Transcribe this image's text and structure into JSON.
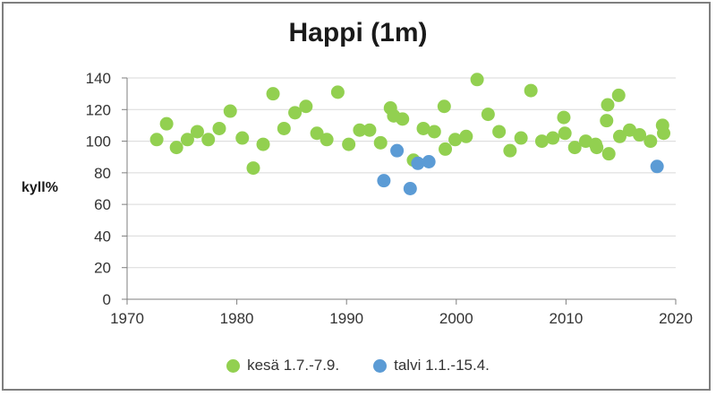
{
  "chart_data": {
    "type": "scatter",
    "title": "Happi (1m)",
    "ylabel": "kyll%",
    "xlabel": "",
    "xlim": [
      1970,
      2020
    ],
    "ylim": [
      0,
      140
    ],
    "xticks": [
      1970,
      1980,
      1990,
      2000,
      2010,
      2020
    ],
    "yticks": [
      0,
      20,
      40,
      60,
      80,
      100,
      120,
      140
    ],
    "grid": "horizontal",
    "legend_position": "bottom",
    "series": [
      {
        "name": "kesä 1.7.-7.9.",
        "color": "#92d050",
        "points": [
          [
            1972.7,
            101
          ],
          [
            1973.6,
            111
          ],
          [
            1974.5,
            96
          ],
          [
            1975.5,
            101
          ],
          [
            1976.4,
            106
          ],
          [
            1977.4,
            101
          ],
          [
            1978.4,
            108
          ],
          [
            1979.4,
            119
          ],
          [
            1980.5,
            102
          ],
          [
            1981.5,
            83
          ],
          [
            1982.4,
            98
          ],
          [
            1983.3,
            130
          ],
          [
            1984.3,
            108
          ],
          [
            1985.3,
            118
          ],
          [
            1986.3,
            122
          ],
          [
            1987.3,
            105
          ],
          [
            1988.2,
            101
          ],
          [
            1989.2,
            131
          ],
          [
            1990.2,
            98
          ],
          [
            1991.2,
            107
          ],
          [
            1992.1,
            107
          ],
          [
            1993.1,
            99
          ],
          [
            1994.0,
            121
          ],
          [
            1994.3,
            116
          ],
          [
            1995.1,
            114
          ],
          [
            1996.1,
            88
          ],
          [
            1997.0,
            108
          ],
          [
            1998.0,
            106
          ],
          [
            1998.9,
            122
          ],
          [
            1999.0,
            95
          ],
          [
            1999.9,
            101
          ],
          [
            2000.9,
            103
          ],
          [
            2001.9,
            139
          ],
          [
            2002.9,
            117
          ],
          [
            2003.9,
            106
          ],
          [
            2004.9,
            94
          ],
          [
            2005.9,
            102
          ],
          [
            2006.8,
            132
          ],
          [
            2007.8,
            100
          ],
          [
            2008.8,
            102
          ],
          [
            2009.8,
            115
          ],
          [
            2009.9,
            105
          ],
          [
            2010.8,
            96
          ],
          [
            2011.8,
            100
          ],
          [
            2012.7,
            98
          ],
          [
            2012.8,
            96
          ],
          [
            2013.7,
            113
          ],
          [
            2013.8,
            123
          ],
          [
            2013.9,
            92
          ],
          [
            2014.8,
            129
          ],
          [
            2014.9,
            103
          ],
          [
            2015.8,
            107
          ],
          [
            2016.7,
            104
          ],
          [
            2017.7,
            100
          ],
          [
            2018.8,
            110
          ],
          [
            2018.9,
            105
          ]
        ]
      },
      {
        "name": "talvi 1.1.-15.4.",
        "color": "#5b9bd5",
        "points": [
          [
            1993.4,
            75
          ],
          [
            1994.6,
            94
          ],
          [
            1995.8,
            70
          ],
          [
            1996.5,
            86
          ],
          [
            1997.5,
            87
          ],
          [
            2018.3,
            84
          ]
        ]
      }
    ]
  }
}
